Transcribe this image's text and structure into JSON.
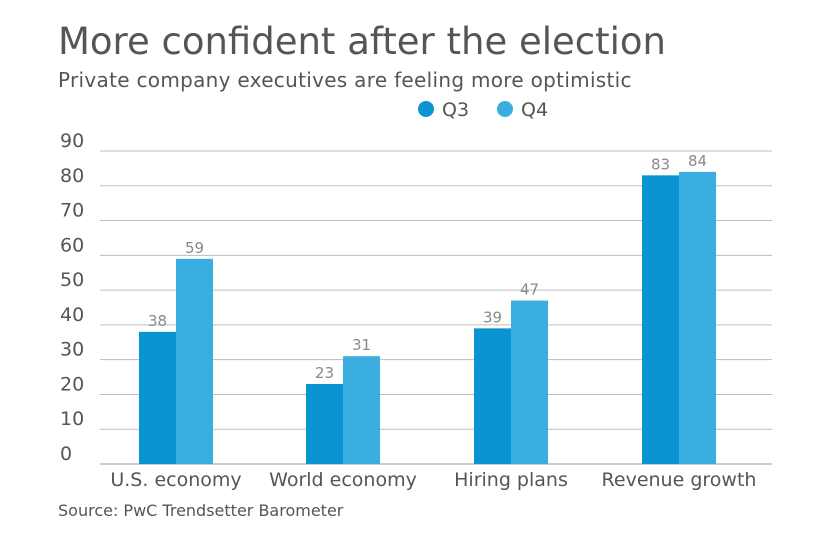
{
  "chart_data": {
    "type": "bar",
    "title": "More confident after the election",
    "subtitle": "Private company executives are feeling more optimistic",
    "source": "Source: PwC Trendsetter Barometer",
    "categories": [
      "U.S. economy",
      "World economy",
      "Hiring plans",
      "Revenue growth"
    ],
    "series": [
      {
        "name": "Q3",
        "values": [
          38,
          23,
          39,
          83
        ],
        "color": "#0a94d2"
      },
      {
        "name": "Q4",
        "values": [
          59,
          31,
          47,
          84
        ],
        "color": "#3aaee0"
      }
    ],
    "ylim": [
      0,
      90
    ],
    "yticks": [
      0,
      10,
      20,
      30,
      40,
      50,
      60,
      70,
      80,
      90
    ],
    "grid": true,
    "legend": "top-center",
    "xlabel": "",
    "ylabel": ""
  }
}
